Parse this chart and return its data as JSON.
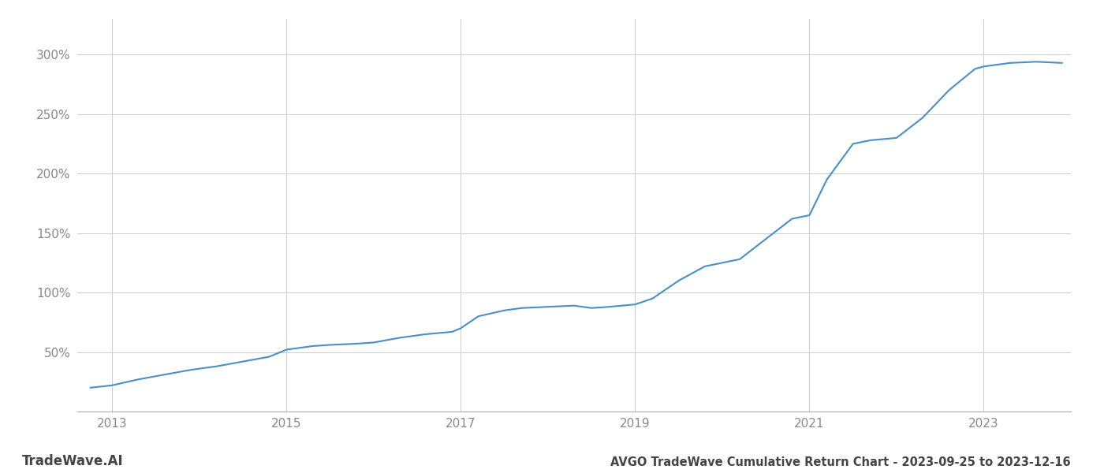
{
  "title": "AVGO TradeWave Cumulative Return Chart - 2023-09-25 to 2023-12-16",
  "watermark": "TradeWave.AI",
  "line_color": "#4a90c4",
  "background_color": "#ffffff",
  "grid_color": "#cccccc",
  "x_years": [
    2013,
    2015,
    2017,
    2019,
    2021,
    2023
  ],
  "yticks": [
    50,
    100,
    150,
    200,
    250,
    300
  ],
  "xlim": [
    2012.6,
    2024.0
  ],
  "ylim": [
    0,
    330
  ],
  "data_x": [
    2012.75,
    2013.0,
    2013.3,
    2013.6,
    2013.9,
    2014.2,
    2014.5,
    2014.8,
    2015.0,
    2015.3,
    2015.5,
    2015.8,
    2016.0,
    2016.3,
    2016.6,
    2016.9,
    2017.0,
    2017.2,
    2017.5,
    2017.7,
    2018.0,
    2018.3,
    2018.5,
    2018.7,
    2019.0,
    2019.2,
    2019.5,
    2019.8,
    2020.0,
    2020.2,
    2020.5,
    2020.8,
    2021.0,
    2021.2,
    2021.5,
    2021.7,
    2022.0,
    2022.3,
    2022.6,
    2022.9,
    2023.0,
    2023.3,
    2023.6,
    2023.9
  ],
  "data_y": [
    20,
    22,
    27,
    31,
    35,
    38,
    42,
    46,
    52,
    55,
    56,
    57,
    58,
    62,
    65,
    67,
    70,
    80,
    85,
    87,
    88,
    89,
    87,
    88,
    90,
    95,
    110,
    122,
    125,
    128,
    145,
    162,
    165,
    195,
    225,
    228,
    230,
    247,
    270,
    288,
    290,
    293,
    294,
    293
  ],
  "title_fontsize": 10.5,
  "tick_fontsize": 11,
  "watermark_fontsize": 12,
  "line_width": 1.5
}
